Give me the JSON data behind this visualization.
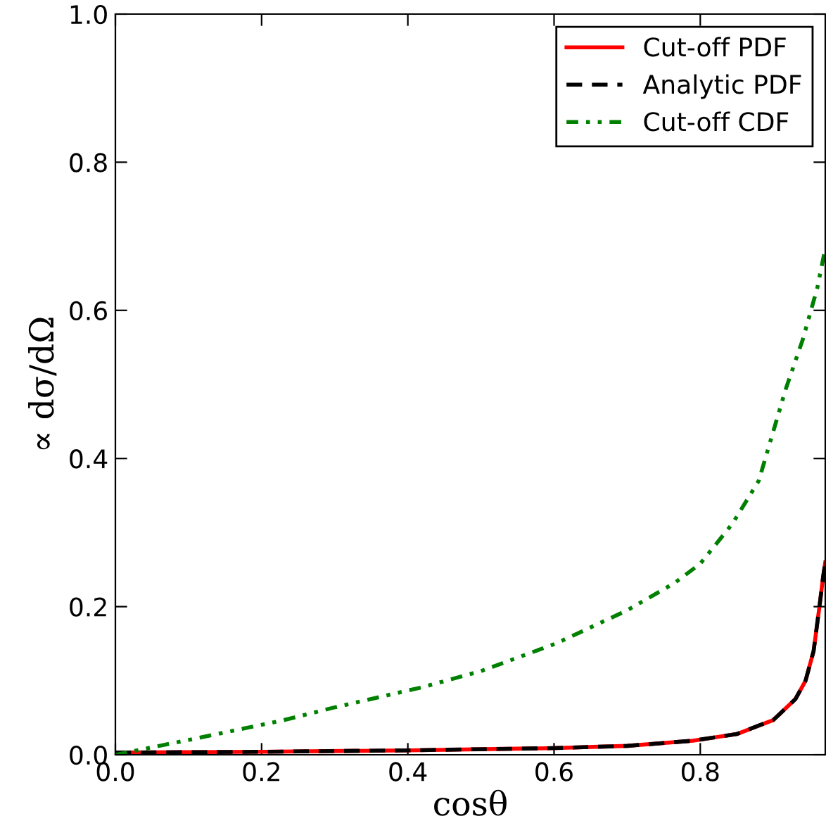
{
  "chart_data": {
    "type": "line",
    "xlabel": "cosθ",
    "ylabel": "∝ dσ/dΩ",
    "xlim": [
      0,
      0.971
    ],
    "ylim": [
      0,
      1.0
    ],
    "xticks": [
      {
        "value": 0,
        "label": "0.0"
      },
      0.2,
      0.4,
      0.6,
      0.8
    ],
    "yticks": [
      {
        "value": 0,
        "label": "0.0"
      },
      0.2,
      0.4,
      0.6,
      0.8,
      {
        "value": 1,
        "label": "1.0"
      }
    ],
    "grid": false,
    "legend": "top right",
    "marker": "none",
    "series": [
      {
        "name": "Cut-off PDF",
        "color": "#ff0000",
        "line_style": "solid",
        "x": [
          0,
          0.2,
          0.4,
          0.6,
          0.7,
          0.79,
          0.85,
          0.9,
          0.93,
          0.944,
          0.955,
          0.963,
          0.968,
          0.971
        ],
        "values": [
          0.003,
          0.004,
          0.006,
          0.009,
          0.012,
          0.019,
          0.028,
          0.047,
          0.075,
          0.1,
          0.14,
          0.2,
          0.24,
          0.26
        ]
      },
      {
        "name": "Analytic PDF",
        "color": "#000000",
        "line_style": "dashed",
        "x": [
          0,
          0.2,
          0.4,
          0.6,
          0.7,
          0.79,
          0.85,
          0.9,
          0.93,
          0.944,
          0.955,
          0.963,
          0.968,
          0.971
        ],
        "values": [
          0.003,
          0.004,
          0.006,
          0.009,
          0.012,
          0.019,
          0.028,
          0.047,
          0.075,
          0.1,
          0.14,
          0.2,
          0.24,
          0.26
        ]
      },
      {
        "name": "Cut-off CDF",
        "color": "#008000",
        "line_style": "dashdot",
        "x": [
          0,
          0.1,
          0.227,
          0.3,
          0.419,
          0.5,
          0.602,
          0.7,
          0.765,
          0.8,
          0.844,
          0.88,
          0.917,
          0.94,
          0.96,
          0.971
        ],
        "values": [
          0,
          0.02,
          0.046,
          0.064,
          0.091,
          0.113,
          0.15,
          0.195,
          0.232,
          0.258,
          0.312,
          0.37,
          0.494,
          0.56,
          0.63,
          0.684
        ]
      }
    ]
  }
}
